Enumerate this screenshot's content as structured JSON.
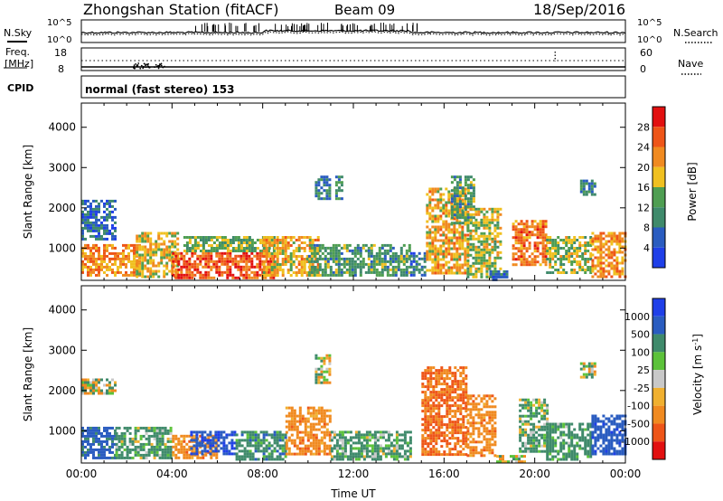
{
  "header": {
    "title": "Zhongshan Station (fitACF)",
    "beam": "Beam 09",
    "date": "18/Sep/2016"
  },
  "noise_panel": {
    "left_label": "N.Sky",
    "left_ticks": [
      "10^5",
      "10^0"
    ],
    "right_ticks": [
      "10^5",
      "10^0"
    ],
    "right_label": "N.Search"
  },
  "freq_panel": {
    "left_label_1": "Freq.",
    "left_label_2": "[MHz]",
    "left_ticks": [
      "18",
      "8"
    ],
    "right_ticks": [
      "60",
      "0"
    ],
    "right_label": "Nave"
  },
  "cpid": {
    "label": "CPID",
    "text": "normal (fast stereo) 153"
  },
  "colors": {
    "power_scale": [
      "#1f3fe8",
      "#2a5cc0",
      "#3f8a6b",
      "#4f9e52",
      "#f0c020",
      "#f08a20",
      "#ee5518",
      "#e21010"
    ],
    "velocity_scale": [
      "#e21010",
      "#ee5518",
      "#f08a20",
      "#f0b030",
      "#c8c8c8",
      "#5cc23a",
      "#3f8a6b",
      "#2a5cc0",
      "#1f3fe8"
    ]
  },
  "chart_data": [
    {
      "type": "heatmap",
      "title": "Power",
      "ylabel": "Slant Range [km]",
      "ylim": [
        200,
        4600
      ],
      "yticks": [
        "1000",
        "2000",
        "3000",
        "4000"
      ],
      "xlim": [
        0,
        24
      ],
      "colorbar_label": "Power [dB]",
      "colorbar_range": [
        0,
        32
      ],
      "colorbar_ticks": [
        "4",
        "8",
        "12",
        "16",
        "20",
        "24",
        "28"
      ],
      "regions": [
        {
          "t0": 0,
          "t1": 2.6,
          "r0": 300,
          "r1": 1100,
          "p": 22
        },
        {
          "t0": 0,
          "t1": 1.5,
          "r0": 1200,
          "r1": 2200,
          "p": 7
        },
        {
          "t0": 2.4,
          "t1": 4.3,
          "r0": 300,
          "r1": 1400,
          "p": 18
        },
        {
          "t0": 4.0,
          "t1": 8.5,
          "r0": 250,
          "r1": 900,
          "p": 26
        },
        {
          "t0": 4.5,
          "t1": 8.5,
          "r0": 900,
          "r1": 1300,
          "p": 14
        },
        {
          "t0": 8.0,
          "t1": 10.5,
          "r0": 300,
          "r1": 1300,
          "p": 20
        },
        {
          "t0": 10.3,
          "t1": 11.0,
          "r0": 2200,
          "r1": 2800,
          "p": 9
        },
        {
          "t0": 11.2,
          "t1": 11.5,
          "r0": 2200,
          "r1": 2800,
          "p": 11
        },
        {
          "t0": 10.0,
          "t1": 14.5,
          "r0": 300,
          "r1": 1100,
          "p": 12
        },
        {
          "t0": 14.5,
          "t1": 15.2,
          "r0": 300,
          "r1": 900,
          "p": 8
        },
        {
          "t0": 15.2,
          "t1": 17.0,
          "r0": 400,
          "r1": 2500,
          "p": 20
        },
        {
          "t0": 16.3,
          "t1": 17.3,
          "r0": 1600,
          "r1": 2800,
          "p": 12
        },
        {
          "t0": 17.0,
          "t1": 18.5,
          "r0": 300,
          "r1": 2000,
          "p": 16
        },
        {
          "t0": 18.0,
          "t1": 18.8,
          "r0": 200,
          "r1": 450,
          "p": 8
        },
        {
          "t0": 19.0,
          "t1": 20.5,
          "r0": 600,
          "r1": 1700,
          "p": 24
        },
        {
          "t0": 20.5,
          "t1": 22.5,
          "r0": 400,
          "r1": 1300,
          "p": 16
        },
        {
          "t0": 22.5,
          "t1": 24.0,
          "r0": 300,
          "r1": 1400,
          "p": 22
        },
        {
          "t0": 22.0,
          "t1": 22.7,
          "r0": 2300,
          "r1": 2700,
          "p": 10
        }
      ]
    },
    {
      "type": "heatmap",
      "title": "Velocity",
      "xlabel": "Time UT",
      "ylabel": "Slant Range [km]",
      "ylim": [
        200,
        4600
      ],
      "yticks": [
        "1000",
        "2000",
        "3000",
        "4000"
      ],
      "xlim": [
        0,
        24
      ],
      "xticks": [
        "00:00",
        "04:00",
        "08:00",
        "12:00",
        "16:00",
        "20:00",
        "00:00"
      ],
      "colorbar_label": "Velocity [m s-1]",
      "colorbar_ticks": [
        "1000",
        "500",
        "100",
        "25",
        "-25",
        "-100",
        "-500",
        "-1000"
      ],
      "regions": [
        {
          "t0": 0,
          "t1": 1.5,
          "r0": 300,
          "r1": 1100,
          "v": 600
        },
        {
          "t0": 0,
          "t1": 1.5,
          "r0": 1900,
          "r1": 2300,
          "v": 0
        },
        {
          "t0": 1.5,
          "t1": 4.0,
          "r0": 300,
          "r1": 1100,
          "v": 200
        },
        {
          "t0": 4.0,
          "t1": 6.0,
          "r0": 300,
          "r1": 900,
          "v": -300
        },
        {
          "t0": 4.8,
          "t1": 6.8,
          "r0": 400,
          "r1": 1000,
          "v": 900
        },
        {
          "t0": 6.8,
          "t1": 9.0,
          "r0": 300,
          "r1": 1000,
          "v": 300
        },
        {
          "t0": 9.0,
          "t1": 11.0,
          "r0": 400,
          "r1": 1600,
          "v": -300
        },
        {
          "t0": 10.3,
          "t1": 11.0,
          "r0": 2200,
          "r1": 2900,
          "v": 0
        },
        {
          "t0": 11.0,
          "t1": 14.5,
          "r0": 300,
          "r1": 1000,
          "v": 200
        },
        {
          "t0": 15.0,
          "t1": 17.0,
          "r0": 400,
          "r1": 2600,
          "v": -500
        },
        {
          "t0": 17.0,
          "t1": 18.3,
          "r0": 400,
          "r1": 1900,
          "v": -300
        },
        {
          "t0": 18.3,
          "t1": 19.5,
          "r0": 200,
          "r1": 400,
          "v": -100
        },
        {
          "t0": 19.3,
          "t1": 20.5,
          "r0": 500,
          "r1": 1800,
          "v": 150
        },
        {
          "t0": 20.5,
          "t1": 22.5,
          "r0": 300,
          "r1": 1200,
          "v": 250
        },
        {
          "t0": 22.5,
          "t1": 24.0,
          "r0": 400,
          "r1": 1400,
          "v": 800
        },
        {
          "t0": 22.0,
          "t1": 22.7,
          "r0": 2300,
          "r1": 2700,
          "v": 0
        }
      ]
    }
  ]
}
